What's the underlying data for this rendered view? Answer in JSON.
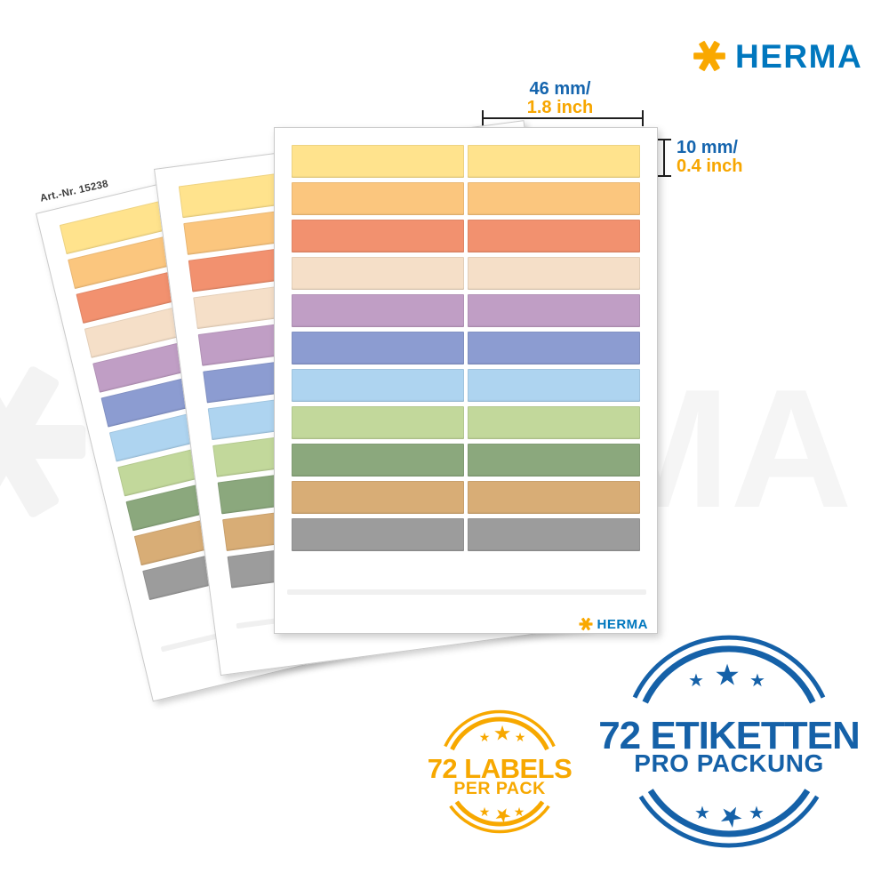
{
  "brand": {
    "name": "HERMA",
    "blue": "#0077BE",
    "orange": "#F9A800"
  },
  "watermark": {
    "text": "HERMA"
  },
  "sheets": {
    "art_nr": "Art.-Nr. 15238",
    "rows": 12,
    "columns": 2,
    "label_colors": [
      "#FFE38D",
      "#FBC67E",
      "#F2916F",
      "#F5DFC8",
      "#C09EC5",
      "#8C9CD1",
      "#AED4F0",
      "#C2D89B",
      "#8BA87D",
      "#D8AD76",
      "#9C9C9C",
      "transparent"
    ],
    "footer_logo": "HERMA"
  },
  "annotations": {
    "width_metric": "46 mm/",
    "width_imperial": "1.8 inch",
    "height_metric": "10 mm/",
    "height_imperial": "0.4 inch",
    "metric_color": "#1565AE",
    "imperial_color": "#F7A600"
  },
  "badge_yellow": {
    "line1": "72 LABELS",
    "line2": "PER PACK",
    "color": "#F7A800",
    "star": "★"
  },
  "badge_blue": {
    "line1": "72 ETIKETTEN",
    "line2": "PRO PACKUNG",
    "color": "#1561A8",
    "star": "★"
  }
}
